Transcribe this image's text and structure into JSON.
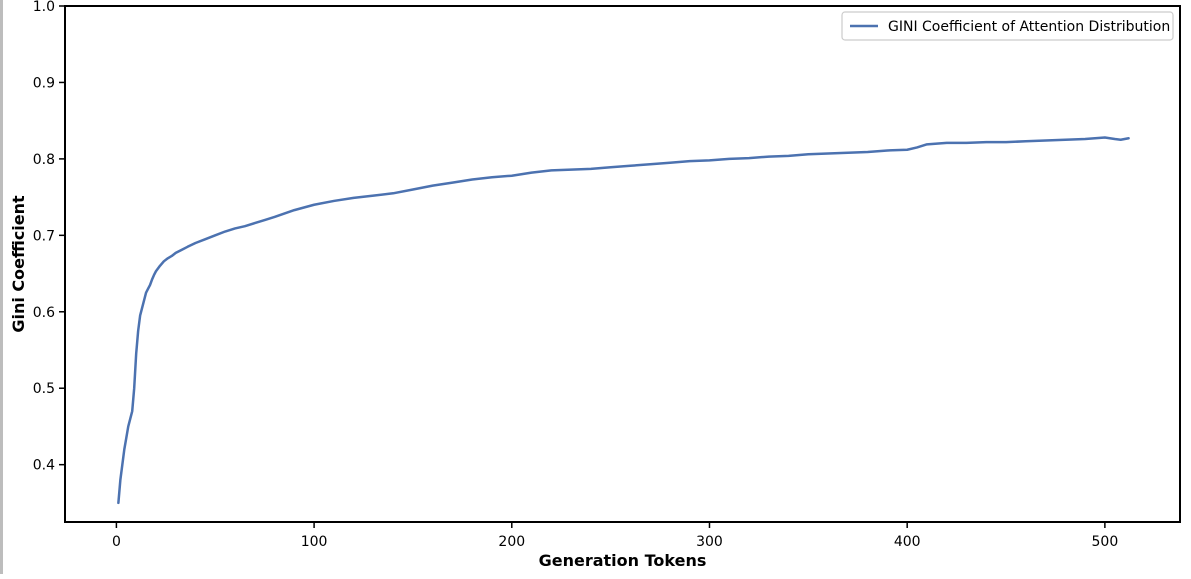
{
  "chart_data": {
    "type": "line",
    "title": "",
    "xlabel": "Generation Tokens",
    "ylabel": "Gini Coefficient",
    "xlim": [
      -26,
      538
    ],
    "ylim": [
      0.325,
      1.0
    ],
    "xticks": [
      0,
      100,
      200,
      300,
      400,
      500
    ],
    "yticks": [
      0.4,
      0.5,
      0.6,
      0.7,
      0.8,
      0.9,
      1.0
    ],
    "grid": false,
    "legend_position": "top-right",
    "series": [
      {
        "name": "GINI Coefficient of Attention Distribution",
        "color": "#4c72b0",
        "x": [
          1,
          2,
          3,
          4,
          5,
          6,
          7,
          8,
          9,
          10,
          11,
          12,
          13,
          14,
          15,
          16,
          17,
          18,
          19,
          20,
          22,
          24,
          26,
          28,
          30,
          33,
          36,
          40,
          45,
          50,
          55,
          60,
          65,
          70,
          75,
          80,
          90,
          100,
          110,
          120,
          130,
          140,
          150,
          160,
          170,
          180,
          190,
          200,
          210,
          220,
          230,
          240,
          250,
          260,
          270,
          280,
          290,
          300,
          310,
          320,
          330,
          340,
          350,
          360,
          370,
          380,
          390,
          400,
          405,
          410,
          420,
          430,
          440,
          450,
          460,
          470,
          480,
          490,
          500,
          505,
          508,
          512
        ],
        "y": [
          0.35,
          0.38,
          0.4,
          0.42,
          0.435,
          0.45,
          0.46,
          0.47,
          0.5,
          0.545,
          0.575,
          0.595,
          0.605,
          0.615,
          0.625,
          0.63,
          0.635,
          0.642,
          0.648,
          0.653,
          0.66,
          0.666,
          0.67,
          0.673,
          0.677,
          0.681,
          0.685,
          0.69,
          0.695,
          0.7,
          0.705,
          0.709,
          0.712,
          0.716,
          0.72,
          0.724,
          0.733,
          0.74,
          0.745,
          0.749,
          0.752,
          0.755,
          0.76,
          0.765,
          0.769,
          0.773,
          0.776,
          0.778,
          0.782,
          0.785,
          0.786,
          0.787,
          0.789,
          0.791,
          0.793,
          0.795,
          0.797,
          0.798,
          0.8,
          0.801,
          0.803,
          0.804,
          0.806,
          0.807,
          0.808,
          0.809,
          0.811,
          0.812,
          0.815,
          0.819,
          0.821,
          0.821,
          0.822,
          0.822,
          0.823,
          0.824,
          0.825,
          0.826,
          0.828,
          0.826,
          0.825,
          0.827
        ]
      }
    ]
  }
}
